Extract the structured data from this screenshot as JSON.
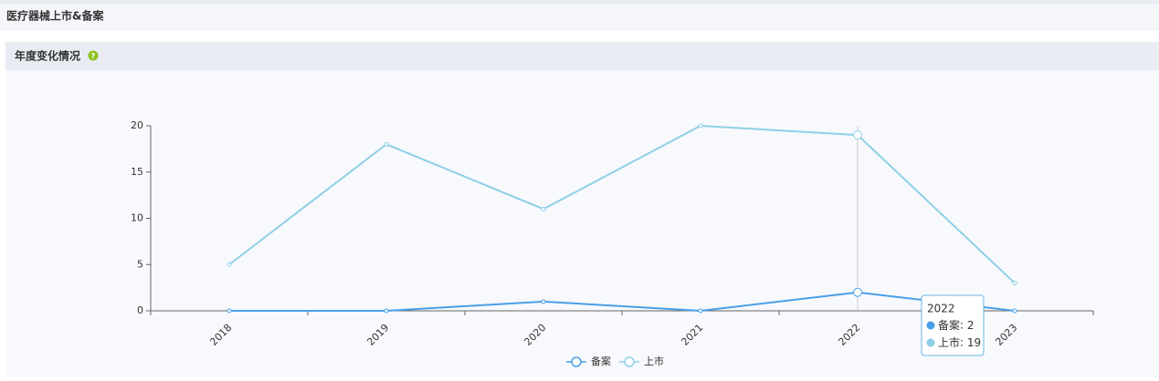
{
  "header": {
    "title": "医疗器械上市&备案"
  },
  "section": {
    "title": "年度变化情况"
  },
  "chart_data": {
    "type": "line",
    "categories": [
      "2018",
      "2019",
      "2020",
      "2021",
      "2022",
      "2023"
    ],
    "series": [
      {
        "name": "备案",
        "color": "#4a9fe8",
        "values": [
          0,
          0,
          1,
          0,
          2,
          0
        ]
      },
      {
        "name": "上市",
        "color": "#8ed0e6",
        "values": [
          5,
          18,
          11,
          20,
          19,
          3
        ]
      }
    ],
    "ylim": [
      0,
      20
    ],
    "yticks": [
      0,
      5,
      10,
      15,
      20
    ],
    "grid": false
  }
}
